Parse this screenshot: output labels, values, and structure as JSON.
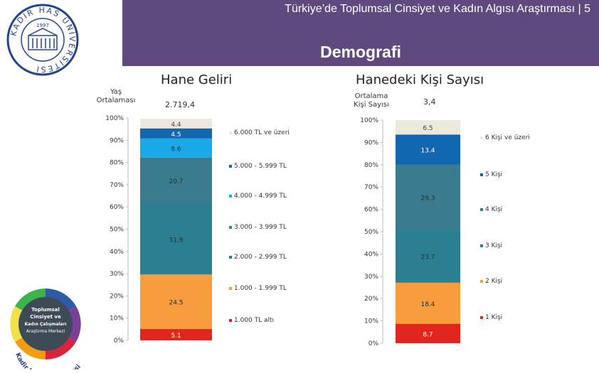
{
  "header": {
    "title": "Türkiye’de Toplumsal Cinsiyet ve Kadın Algısı Araştırması | 5",
    "subtitle": "Demografi"
  },
  "logos": {
    "top_text": "KADIR HAS ÜNİVERSİTESİ",
    "top_year": "1997",
    "bottom_lines": [
      "Toplumsal",
      "Cinsiyet ve",
      "Kadın Çalışmaları",
      "Araştırma Merkezi"
    ],
    "bottom_arc": "Kadir Has Üniversitesi"
  },
  "left": {
    "title": "Hane Geliri",
    "stat_label_lines": [
      "Yaş",
      "Ortalaması"
    ],
    "stat_value": "2.719,4"
  },
  "right": {
    "title": "Hanedeki Kişi Sayısı",
    "stat_label_lines": [
      "Ortalama",
      "Kişi Sayısı"
    ],
    "stat_value": "3,4"
  },
  "chart_data": [
    {
      "type": "bar",
      "stacked": true,
      "title": "Hane Geliri",
      "ylim": [
        0,
        100
      ],
      "y_ticks": [
        "0%",
        "10%",
        "20%",
        "30%",
        "40%",
        "50%",
        "60%",
        "70%",
        "80%",
        "90%",
        "100%"
      ],
      "series": [
        {
          "name": "1.000 TL altı",
          "value": 5.1,
          "label": "5.1",
          "color": "#e0261f"
        },
        {
          "name": "1.000 - 1.999 TL",
          "value": 24.5,
          "label": "24.5",
          "color": "#f79d3d"
        },
        {
          "name": "2.000 - 2.999 TL",
          "value": 31.9,
          "label": "31.9",
          "color": "#2c7f90"
        },
        {
          "name": "3.000 - 3.999 TL",
          "value": 20.7,
          "label": "20.7",
          "color": "#3a7b8d"
        },
        {
          "name": "4.000 - 4.999 TL",
          "value": 8.6,
          "label": "8.6",
          "color": "#1aa9e8"
        },
        {
          "name": "5.000 - 5.999 TL",
          "value": 4.5,
          "label": "4.5",
          "color": "#1166b0"
        },
        {
          "name": "6.000 TL ve üzeri",
          "value": 4.4,
          "label": "4.4",
          "color": "#ede8dc"
        }
      ]
    },
    {
      "type": "bar",
      "stacked": true,
      "title": "Hanedeki Kişi Sayısı",
      "ylim": [
        0,
        100
      ],
      "y_ticks": [
        "0%",
        "10%",
        "20%",
        "30%",
        "40%",
        "50%",
        "60%",
        "70%",
        "80%",
        "90%",
        "100%"
      ],
      "series": [
        {
          "name": "1 Kişi",
          "value": 8.7,
          "label": "8.7",
          "color": "#e0261f"
        },
        {
          "name": "2 Kişi",
          "value": 18.4,
          "label": "18.4",
          "color": "#f79d3d"
        },
        {
          "name": "3 Kişi",
          "value": 23.7,
          "label": "23.7",
          "color": "#2c7f90"
        },
        {
          "name": "4 Kişi",
          "value": 29.3,
          "label": "29.3",
          "color": "#3a7b8d"
        },
        {
          "name": "5 Kişi",
          "value": 13.4,
          "label": "13.4",
          "color": "#1166b0"
        },
        {
          "name": "6 Kişi ve üzeri",
          "value": 6.5,
          "label": "6.5",
          "color": "#ede8dc"
        }
      ]
    }
  ]
}
